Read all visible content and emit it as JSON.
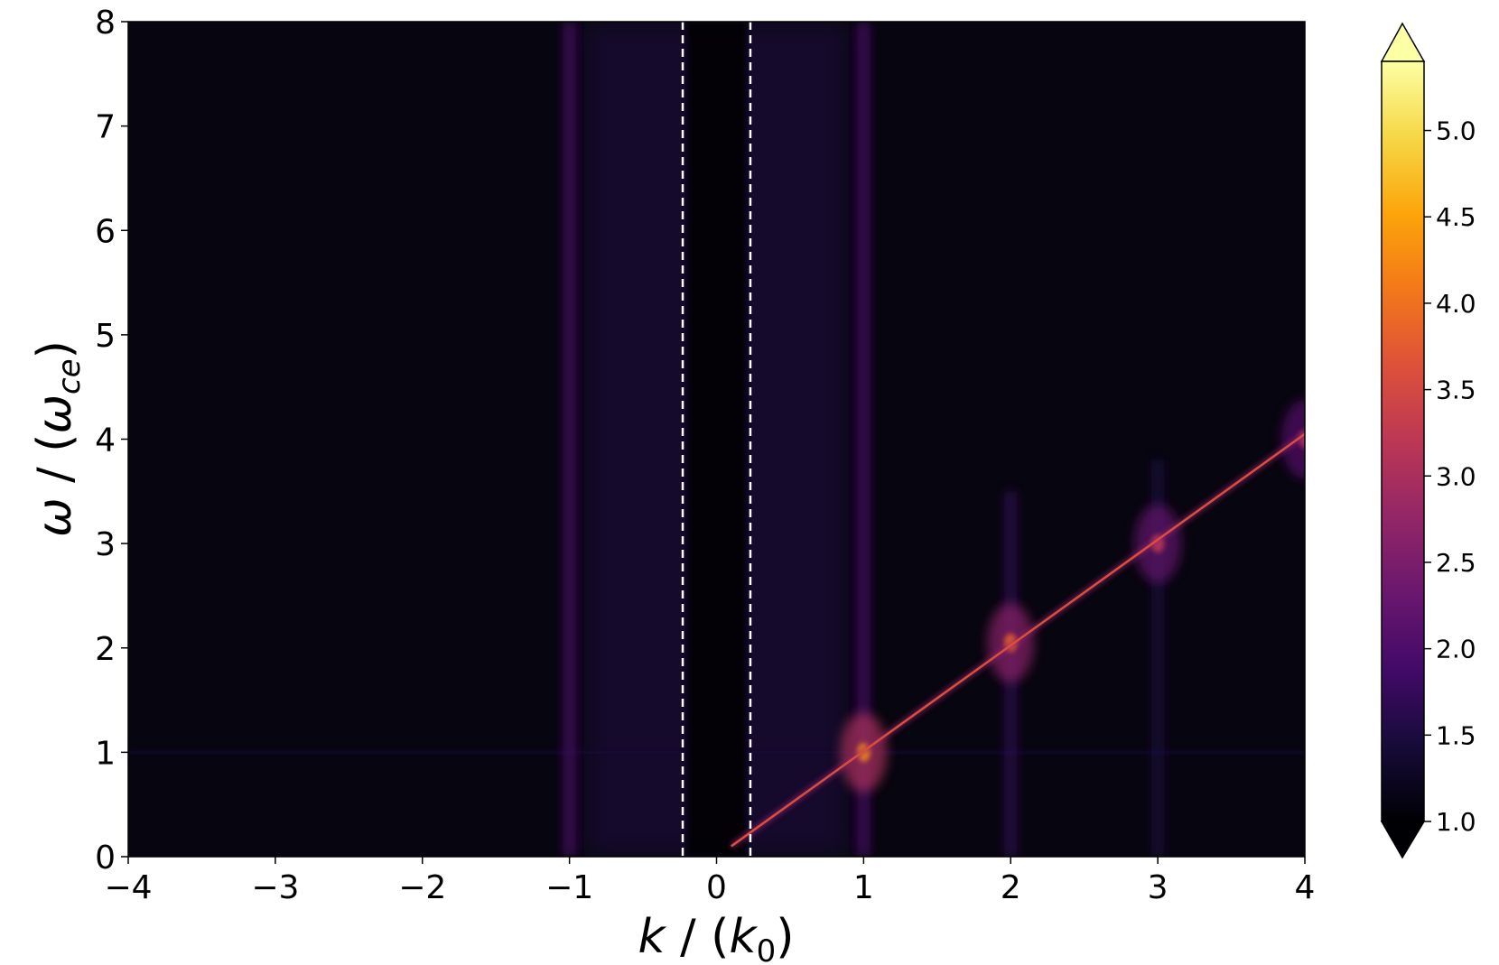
{
  "chart_data": {
    "type": "heatmap",
    "title": "",
    "xlabel": {
      "symbol": "k",
      "sep": " / ",
      "unit_symbol": "k",
      "unit_sub": "0"
    },
    "ylabel": {
      "symbol": "ω",
      "sep": " / ",
      "unit_symbol": "ω",
      "unit_sub": "ce"
    },
    "xlim": [
      -4,
      4
    ],
    "ylim": [
      0,
      8
    ],
    "xticks": [
      -4,
      -3,
      -2,
      -1,
      0,
      1,
      2,
      3,
      4
    ],
    "xtick_labels": [
      "−4",
      "−3",
      "−2",
      "−1",
      "0",
      "1",
      "2",
      "3",
      "4"
    ],
    "yticks": [
      0,
      1,
      2,
      3,
      4,
      5,
      6,
      7,
      8
    ],
    "ytick_labels": [
      "0",
      "1",
      "2",
      "3",
      "4",
      "5",
      "6",
      "7",
      "8"
    ],
    "colormap": "inferno",
    "colorbar": {
      "range": [
        1.0,
        5.4
      ],
      "extend": "both",
      "ticks": [
        1.0,
        1.5,
        2.0,
        2.5,
        3.0,
        3.5,
        4.0,
        4.5,
        5.0
      ],
      "tick_labels": [
        "1.0",
        "1.5",
        "2.0",
        "2.5",
        "3.0",
        "3.5",
        "4.0",
        "4.5",
        "5.0"
      ]
    },
    "background_value": 1.0,
    "reference_lines": [
      {
        "orientation": "vertical",
        "x": -0.23,
        "style": "dashed",
        "color": "#ffffff"
      },
      {
        "orientation": "vertical",
        "x": 0.23,
        "style": "dashed",
        "color": "#ffffff"
      }
    ],
    "features": {
      "dispersion_line": {
        "from": [
          0.1,
          0.1
        ],
        "to": [
          4.0,
          4.05
        ],
        "peak_value": 3.6
      },
      "vertical_bands": [
        {
          "x": -1.0,
          "value": 2.0,
          "height": 8
        },
        {
          "x": 1.0,
          "value": 2.0,
          "height": 8
        },
        {
          "x": 2.0,
          "value": 1.7,
          "height": 3.5
        },
        {
          "x": 3.0,
          "value": 1.5,
          "height": 3.8
        }
      ],
      "hot_spots": [
        {
          "x": 1.0,
          "y": 1.0,
          "value": 4.3
        },
        {
          "x": 2.0,
          "y": 2.05,
          "value": 3.8
        },
        {
          "x": 3.0,
          "y": 3.0,
          "value": 3.2
        },
        {
          "x": 4.0,
          "y": 4.0,
          "value": 3.0
        }
      ],
      "horizontal_line": {
        "y": 1.0,
        "value": 1.4
      },
      "central_dark_channel": {
        "x_range": [
          -0.2,
          0.2
        ]
      }
    }
  }
}
